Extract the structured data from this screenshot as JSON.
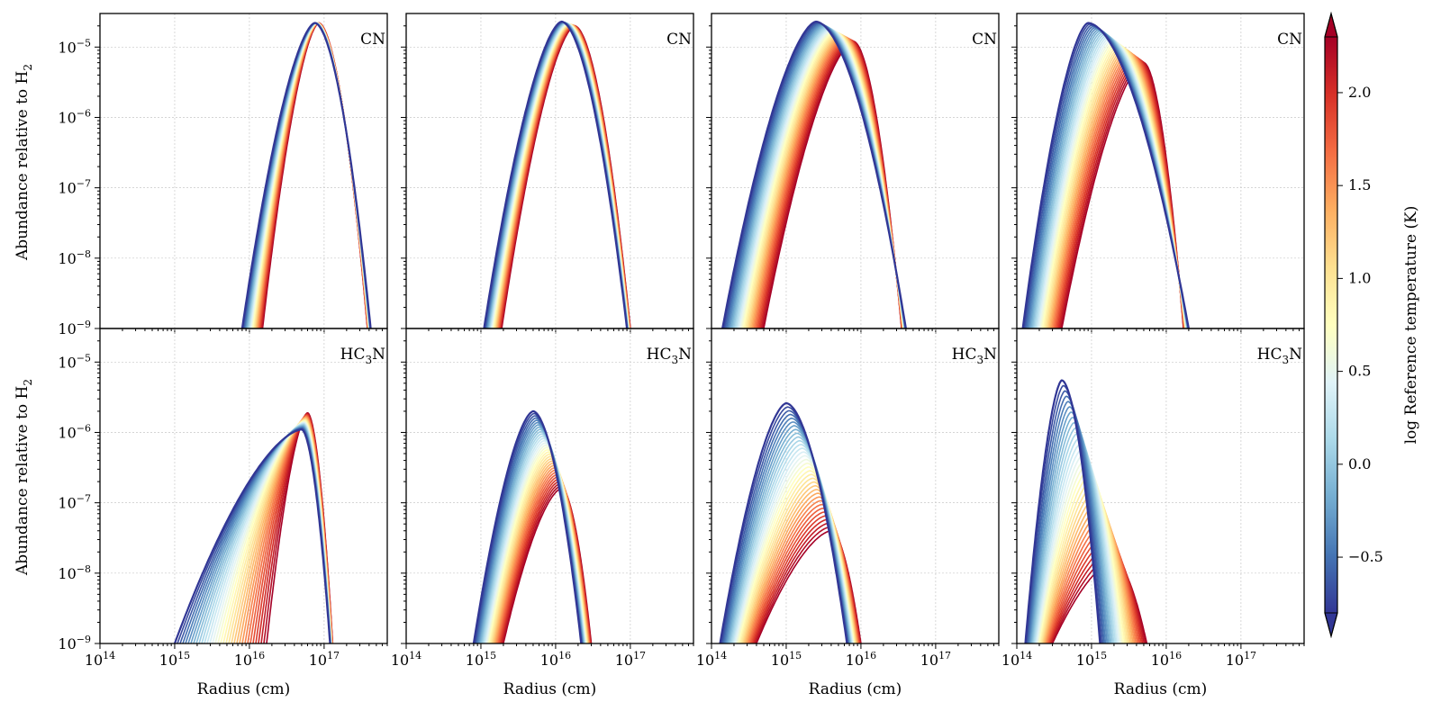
{
  "chart_data": {
    "type": "line",
    "layout": "2 rows x 4 columns, shared axes",
    "xlabel": "Radius (cm)",
    "ylabel_main": "Abundance relative to H",
    "ylabel_sub": "2",
    "xscale": "log",
    "yscale": "log",
    "xlim": [
      100000000000000.0,
      7e+17
    ],
    "ylim": [
      1e-09,
      3e-05
    ],
    "grid": true,
    "x_ticks": [
      {
        "value": 100000000000000.0,
        "label": "10",
        "exp": "14"
      },
      {
        "value": 1000000000000000.0,
        "label": "10",
        "exp": "15"
      },
      {
        "value": 1e+16,
        "label": "10",
        "exp": "16"
      },
      {
        "value": 1e+17,
        "label": "10",
        "exp": "17"
      }
    ],
    "y_ticks": [
      {
        "value": 1e-09,
        "label": "10",
        "exp": "−9"
      },
      {
        "value": 1e-08,
        "label": "10",
        "exp": "−8"
      },
      {
        "value": 1e-07,
        "label": "10",
        "exp": "−7"
      },
      {
        "value": 1e-06,
        "label": "10",
        "exp": "−6"
      },
      {
        "value": 1e-05,
        "label": "10",
        "exp": "−5"
      }
    ],
    "colorbar": {
      "label": "log Reference temperature (K)",
      "colormap": "RdYlBu_r",
      "range": [
        -0.8,
        2.3
      ],
      "extend": "both",
      "ticks": [
        {
          "value": -0.5,
          "label": "−0.5"
        },
        {
          "value": 0.0,
          "label": "0.0"
        },
        {
          "value": 0.5,
          "label": "0.5"
        },
        {
          "value": 1.0,
          "label": "1.0"
        },
        {
          "value": 1.5,
          "label": "1.5"
        },
        {
          "value": 2.0,
          "label": "2.0"
        }
      ],
      "colors": [
        "#313695",
        "#4575b4",
        "#74add1",
        "#abd9e9",
        "#e0f3f8",
        "#ffffbf",
        "#fee090",
        "#fdae61",
        "#f46d43",
        "#d73027",
        "#a50026"
      ]
    },
    "panels": [
      {
        "species": "CN",
        "sub": "",
        "row": 0,
        "col": 0,
        "blue": {
          "peak_x": 7.5e+16,
          "peak_y": 2.2e-05,
          "left_x": 8000000000000000.0,
          "right_x": 4.2e+17,
          "shoulder_y": 1.5e-09
        },
        "red": {
          "peak_x": 8.5e+16,
          "peak_y": 2.2e-05,
          "left_x": 1.5e+16,
          "right_x": 3.8e+17
        }
      },
      {
        "species": "CN",
        "sub": "",
        "row": 0,
        "col": 1,
        "blue": {
          "peak_x": 1.2e+16,
          "peak_y": 2.3e-05,
          "left_x": 1100000000000000.0,
          "right_x": 9e+16
        },
        "red": {
          "peak_x": 1.8e+16,
          "peak_y": 2e-05,
          "left_x": 1900000000000000.0,
          "right_x": 1e+17
        }
      },
      {
        "species": "CN",
        "sub": "",
        "row": 0,
        "col": 2,
        "blue": {
          "peak_x": 2500000000000000.0,
          "peak_y": 2.3e-05,
          "left_x": 140000000000000.0,
          "right_x": 4e+16
        },
        "red": {
          "peak_x": 8000000000000000.0,
          "peak_y": 1.2e-05,
          "left_x": 500000000000000.0,
          "right_x": 3.5e+16
        }
      },
      {
        "species": "CN",
        "sub": "",
        "row": 0,
        "col": 3,
        "blue": {
          "peak_x": 900000000000000.0,
          "peak_y": 2.2e-05,
          "left_x": 120000000000000.0,
          "right_x": 2e+16
        },
        "red": {
          "peak_x": 5000000000000000.0,
          "peak_y": 6e-06,
          "left_x": 400000000000000.0,
          "right_x": 1.7e+16
        }
      },
      {
        "species": "HC",
        "sub": "3",
        "suffix": "N",
        "row": 1,
        "col": 0,
        "blue": {
          "peak_x": 5e+16,
          "peak_y": 1.1e-06,
          "left_x": 1000000000000000.0,
          "right_x": 1.2e+17,
          "shoulder_y": 2e-08
        },
        "red": {
          "peak_x": 6e+16,
          "peak_y": 1.9e-06,
          "left_x": 1.7e+16,
          "right_x": 1.3e+17
        }
      },
      {
        "species": "HC",
        "sub": "3",
        "suffix": "N",
        "row": 1,
        "col": 1,
        "blue": {
          "peak_x": 5000000000000000.0,
          "peak_y": 2e-06,
          "left_x": 800000000000000.0,
          "right_x": 2.2e+16
        },
        "red": {
          "peak_x": 1.2e+16,
          "peak_y": 1.6e-07,
          "left_x": 2000000000000000.0,
          "right_x": 3e+16
        }
      },
      {
        "species": "HC",
        "sub": "3",
        "suffix": "N",
        "row": 1,
        "col": 2,
        "blue": {
          "peak_x": 1000000000000000.0,
          "peak_y": 2.6e-06,
          "left_x": 130000000000000.0,
          "right_x": 6500000000000000.0
        },
        "red": {
          "peak_x": 4000000000000000.0,
          "peak_y": 4e-08,
          "left_x": 400000000000000.0,
          "right_x": 1e+16
        }
      },
      {
        "species": "HC",
        "sub": "3",
        "suffix": "N",
        "row": 1,
        "col": 3,
        "blue": {
          "peak_x": 400000000000000.0,
          "peak_y": 5.5e-06,
          "left_x": 130000000000000.0,
          "right_x": 1300000000000000.0
        },
        "red": {
          "peak_x": 2000000000000000.0,
          "peak_y": 1.5e-08,
          "left_x": 300000000000000.0,
          "right_x": 5500000000000000.0
        }
      }
    ]
  }
}
